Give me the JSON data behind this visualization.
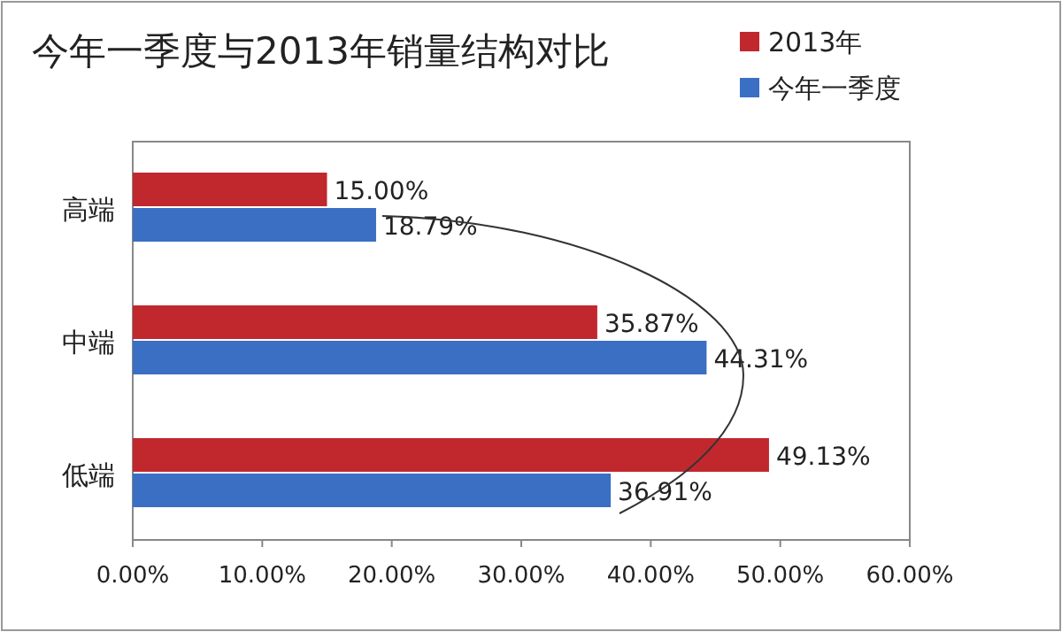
{
  "chart_data": {
    "type": "bar",
    "orientation": "horizontal",
    "title": "今年一季度与2013年销量结构对比",
    "categories": [
      "高端",
      "中端",
      "低端"
    ],
    "series": [
      {
        "name": "2013年",
        "color": "#c0282d",
        "values": [
          15.0,
          35.87,
          49.13
        ],
        "value_labels": [
          "15.00%",
          "35.87%",
          "49.13%"
        ]
      },
      {
        "name": "今年一季度",
        "color": "#3a6fc4",
        "values": [
          18.79,
          44.31,
          36.91
        ],
        "value_labels": [
          "18.79%",
          "44.31%",
          "36.91%"
        ]
      }
    ],
    "xlim": [
      0,
      60
    ],
    "xticks": [
      {
        "value": 0,
        "label": "0.00%"
      },
      {
        "value": 10,
        "label": "10.00%"
      },
      {
        "value": 20,
        "label": "20.00%"
      },
      {
        "value": 30,
        "label": "30.00%"
      },
      {
        "value": 40,
        "label": "40.00%"
      },
      {
        "value": 50,
        "label": "50.00%"
      },
      {
        "value": 60,
        "label": "60.00%"
      }
    ],
    "legend": "top right"
  }
}
